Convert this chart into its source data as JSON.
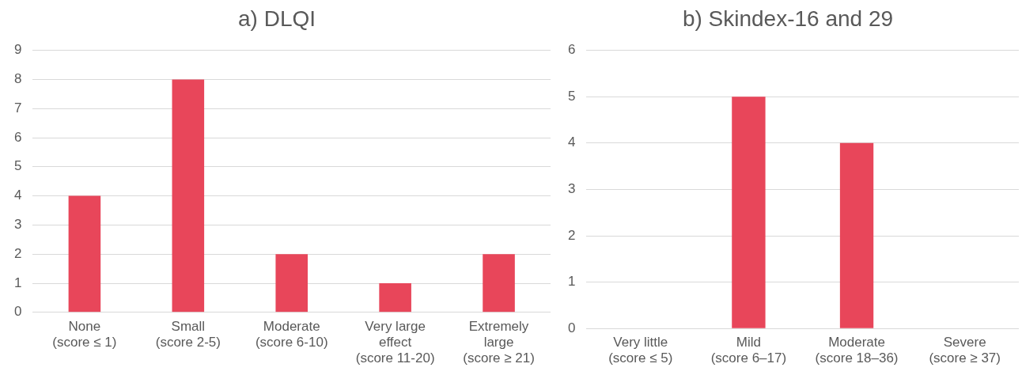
{
  "chart_data": [
    {
      "type": "bar",
      "title": "a) DLQI",
      "categories": [
        "None\n(score ≤ 1)",
        "Small\n(score 2-5)",
        "Moderate\n(score 6-10)",
        "Very large\neffect\n(score 11-20)",
        "Extremely\nlarge\n(score ≥ 21)"
      ],
      "values": [
        4,
        8,
        2,
        1,
        2
      ],
      "color": "#e8465a",
      "ylim": [
        0,
        9
      ],
      "yticks": [
        0,
        1,
        2,
        3,
        4,
        5,
        6,
        7,
        8,
        9
      ],
      "grid": "y",
      "legend": false
    },
    {
      "type": "bar",
      "title": "b) Skindex-16 and 29",
      "categories": [
        "Very little\n(score ≤ 5)",
        "Mild\n(score 6–17)",
        "Moderate\n(score 18–36)",
        "Severe\n(score ≥ 37)"
      ],
      "values": [
        0,
        5,
        4,
        0
      ],
      "color": "#e8465a",
      "ylim": [
        0,
        6
      ],
      "yticks": [
        0,
        1,
        2,
        3,
        4,
        5,
        6
      ],
      "grid": "y",
      "legend": false
    }
  ]
}
